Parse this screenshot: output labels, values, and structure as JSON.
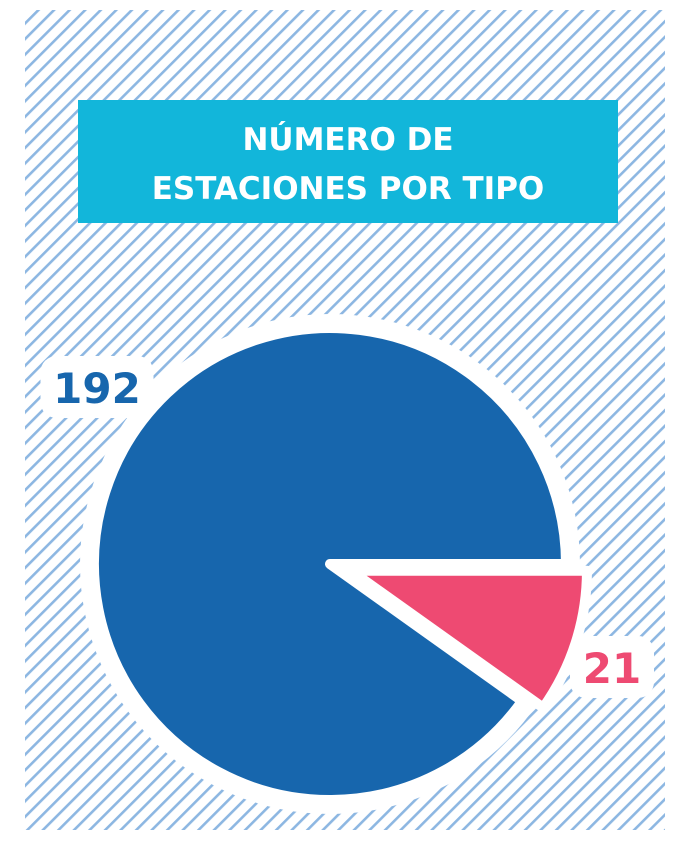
{
  "chart_data": {
    "type": "pie",
    "title": [
      "NÚMERO DE",
      "ESTACIONES POR TIPO"
    ],
    "values": [
      192,
      21
    ],
    "colors": [
      "#1766ad",
      "#ee4a72"
    ]
  }
}
